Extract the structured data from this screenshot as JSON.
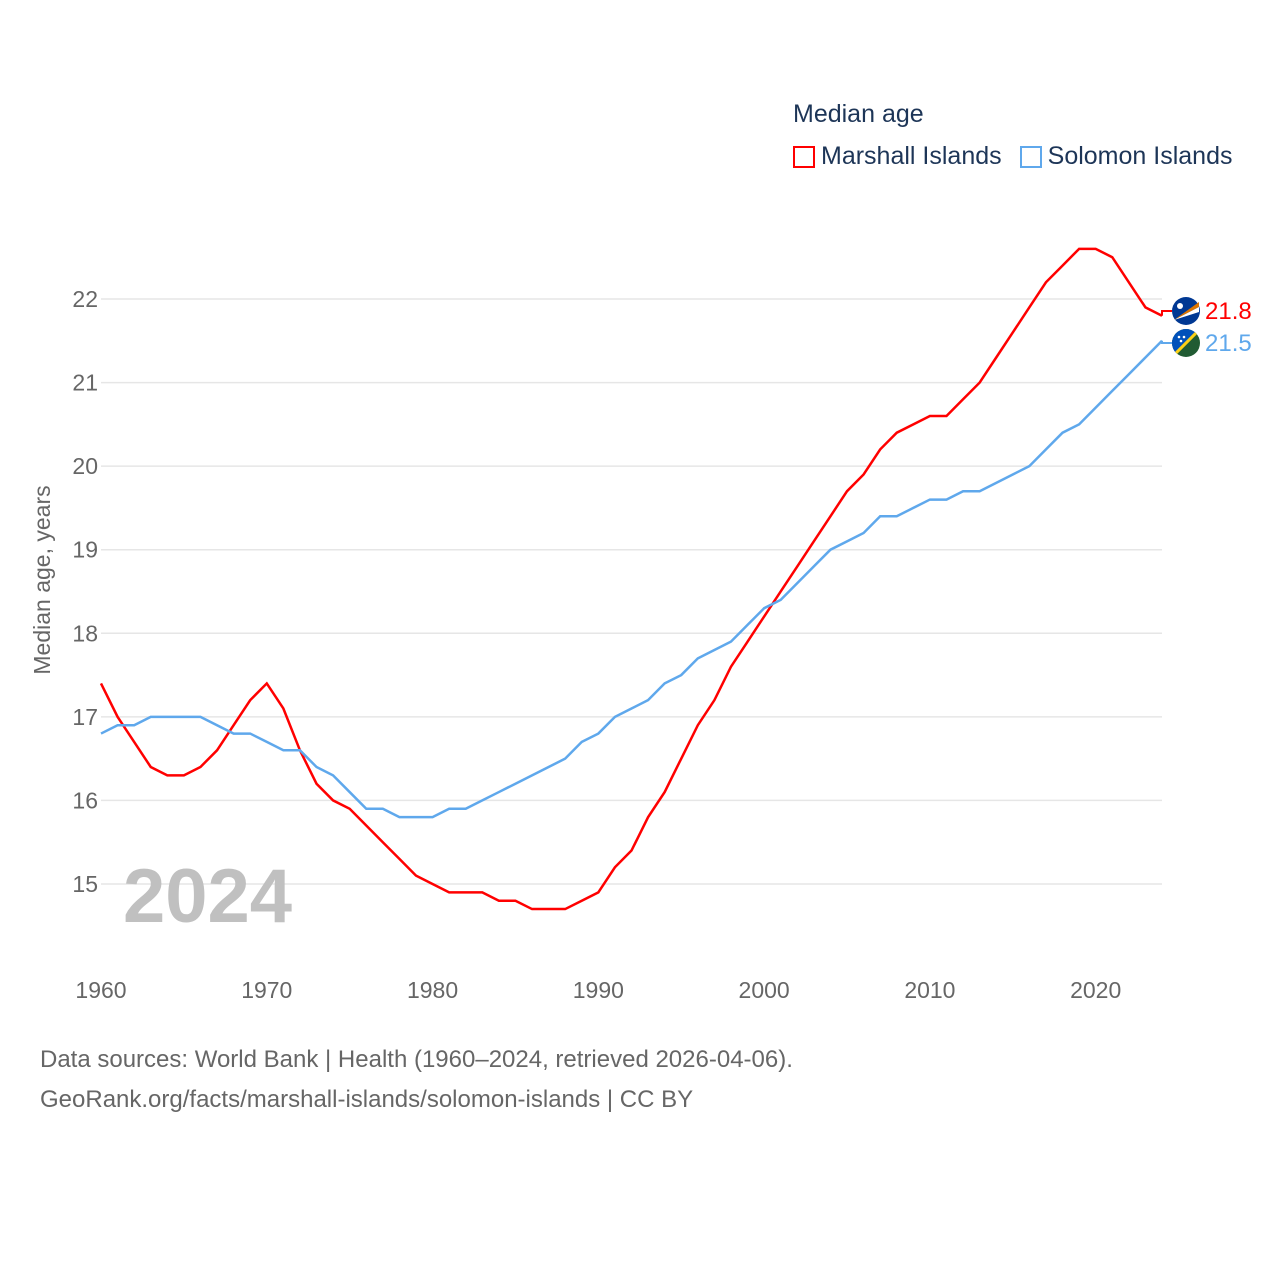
{
  "legend": {
    "title": "Median age",
    "entries": [
      "Marshall Islands",
      "Solomon Islands"
    ]
  },
  "watermark_year": "2024",
  "source_line1": "Data sources: World Bank | Health (1960–2024, retrieved 2026-04-06).",
  "source_line2": "GeoRank.org/facts/marshall-islands/solomon-islands | CC BY",
  "chart_data": {
    "type": "line",
    "title": "Median age",
    "xlabel": "",
    "ylabel": "Median age, years",
    "xlim": [
      1960,
      2024
    ],
    "ylim": [
      14.2,
      23
    ],
    "xticks": [
      1960,
      1970,
      1980,
      1990,
      2000,
      2010,
      2020
    ],
    "yticks": [
      15,
      16,
      17,
      18,
      19,
      20,
      21,
      22
    ],
    "grid": true,
    "legend_placement": "top-right",
    "x": [
      1960,
      1961,
      1962,
      1963,
      1964,
      1965,
      1966,
      1967,
      1968,
      1969,
      1970,
      1971,
      1972,
      1973,
      1974,
      1975,
      1976,
      1977,
      1978,
      1979,
      1980,
      1981,
      1982,
      1983,
      1984,
      1985,
      1986,
      1987,
      1988,
      1989,
      1990,
      1991,
      1992,
      1993,
      1994,
      1995,
      1996,
      1997,
      1998,
      1999,
      2000,
      2001,
      2002,
      2003,
      2004,
      2005,
      2006,
      2007,
      2008,
      2009,
      2010,
      2011,
      2012,
      2013,
      2014,
      2015,
      2016,
      2017,
      2018,
      2019,
      2020,
      2021,
      2022,
      2023,
      2024
    ],
    "series": [
      {
        "name": "Marshall Islands",
        "color": "#ff0000",
        "end_label": "21.8",
        "values": [
          17.4,
          17.0,
          16.7,
          16.4,
          16.3,
          16.3,
          16.4,
          16.6,
          16.9,
          17.2,
          17.4,
          17.1,
          16.6,
          16.2,
          16.0,
          15.9,
          15.7,
          15.5,
          15.3,
          15.1,
          15.0,
          14.9,
          14.9,
          14.9,
          14.8,
          14.8,
          14.7,
          14.7,
          14.7,
          14.8,
          14.9,
          15.2,
          15.4,
          15.8,
          16.1,
          16.5,
          16.9,
          17.2,
          17.6,
          17.9,
          18.2,
          18.5,
          18.8,
          19.1,
          19.4,
          19.7,
          19.9,
          20.2,
          20.4,
          20.5,
          20.6,
          20.6,
          20.8,
          21.0,
          21.3,
          21.6,
          21.9,
          22.2,
          22.4,
          22.6,
          22.6,
          22.5,
          22.2,
          21.9,
          21.8
        ]
      },
      {
        "name": "Solomon Islands",
        "color": "#5fa8ec",
        "end_label": "21.5",
        "values": [
          16.8,
          16.9,
          16.9,
          17.0,
          17.0,
          17.0,
          17.0,
          16.9,
          16.8,
          16.8,
          16.7,
          16.6,
          16.6,
          16.4,
          16.3,
          16.1,
          15.9,
          15.9,
          15.8,
          15.8,
          15.8,
          15.9,
          15.9,
          16.0,
          16.1,
          16.2,
          16.3,
          16.4,
          16.5,
          16.7,
          16.8,
          17.0,
          17.1,
          17.2,
          17.4,
          17.5,
          17.7,
          17.8,
          17.9,
          18.1,
          18.3,
          18.4,
          18.6,
          18.8,
          19.0,
          19.1,
          19.2,
          19.4,
          19.4,
          19.5,
          19.6,
          19.6,
          19.7,
          19.7,
          19.8,
          19.9,
          20.0,
          20.2,
          20.4,
          20.5,
          20.7,
          20.9,
          21.1,
          21.3,
          21.5
        ]
      }
    ]
  }
}
